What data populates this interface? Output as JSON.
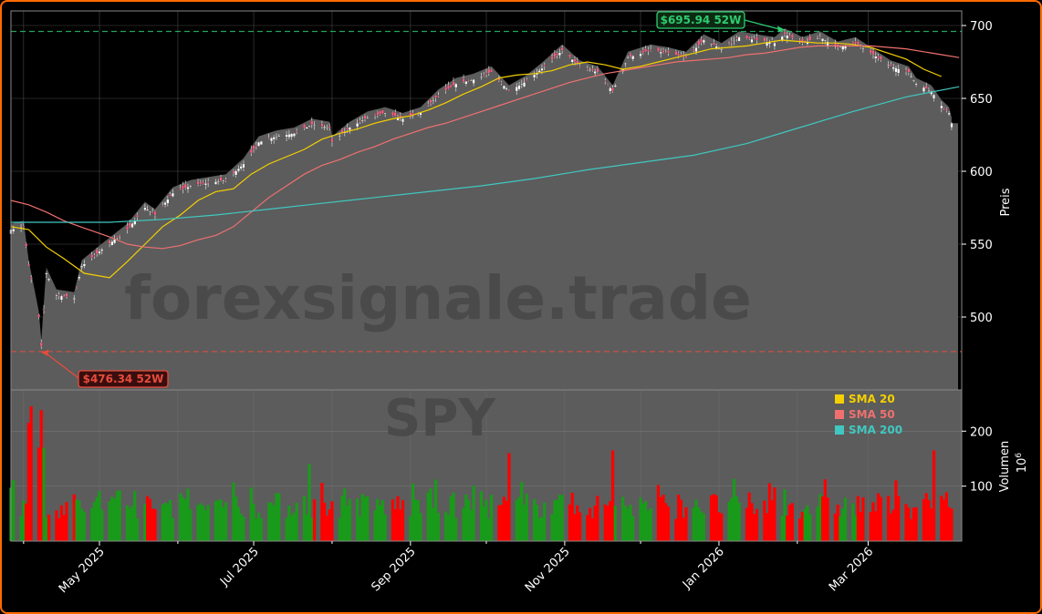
{
  "chart_data": {
    "type": "candlestick",
    "title": "",
    "symbol": "SPY",
    "watermark": "forexsignale.trade",
    "price_axis": {
      "label": "Preis",
      "ylim": [
        450,
        710
      ],
      "ticks": [
        500,
        550,
        600,
        650,
        700
      ]
    },
    "volume_axis": {
      "label": "Volumen",
      "unit_exp": "6",
      "ylim": [
        0,
        275
      ],
      "ticks": [
        100,
        200
      ]
    },
    "x_axis": {
      "range": [
        "2025-03-27",
        "2026-04-07"
      ],
      "ticks": [
        {
          "date": "2025-05-01",
          "label": "May 2025"
        },
        {
          "date": "2025-07-01",
          "label": "Jul 2025"
        },
        {
          "date": "2025-09-01",
          "label": "Sep 2025"
        },
        {
          "date": "2025-11-01",
          "label": "Nov 2025"
        },
        {
          "date": "2026-01-01",
          "label": "Jan 2026"
        },
        {
          "date": "2026-03-01",
          "label": "Mar 2026"
        }
      ],
      "minor_ticks": [
        "2025-04-01",
        "2025-06-01",
        "2025-08-01",
        "2025-10-01",
        "2025-12-01",
        "2026-02-01"
      ]
    },
    "grid": true,
    "legend": {
      "position": "top-right of volume panel",
      "entries": [
        {
          "label": "SMA 20",
          "color": "#f5d000"
        },
        {
          "label": "SMA 50",
          "color": "#f07070"
        },
        {
          "label": "SMA 200",
          "color": "#40c8c0"
        }
      ]
    },
    "annotations": [
      {
        "text": "$695.94 52W",
        "value": 695.94,
        "date": "2026-01-27",
        "color": "#2ecc71"
      },
      {
        "text": "$476.34 52W",
        "value": 476.34,
        "date": "2025-04-08",
        "color": "#e74c3c"
      }
    ],
    "last_close": 633,
    "series": [
      {
        "name": "SMA 20",
        "color": "#f5d000",
        "points": [
          [
            "2025-03-27",
            562
          ],
          [
            "2025-04-03",
            560
          ],
          [
            "2025-04-10",
            548
          ],
          [
            "2025-04-17",
            540
          ],
          [
            "2025-04-25",
            530
          ],
          [
            "2025-05-05",
            527
          ],
          [
            "2025-05-12",
            538
          ],
          [
            "2025-05-19",
            550
          ],
          [
            "2025-05-26",
            562
          ],
          [
            "2025-06-02",
            570
          ],
          [
            "2025-06-09",
            580
          ],
          [
            "2025-06-16",
            586
          ],
          [
            "2025-06-23",
            588
          ],
          [
            "2025-06-30",
            598
          ],
          [
            "2025-07-07",
            605
          ],
          [
            "2025-07-14",
            610
          ],
          [
            "2025-07-21",
            615
          ],
          [
            "2025-07-28",
            622
          ],
          [
            "2025-08-04",
            626
          ],
          [
            "2025-08-11",
            629
          ],
          [
            "2025-08-18",
            633
          ],
          [
            "2025-08-25",
            636
          ],
          [
            "2025-09-01",
            638
          ],
          [
            "2025-09-08",
            642
          ],
          [
            "2025-09-15",
            647
          ],
          [
            "2025-09-22",
            653
          ],
          [
            "2025-09-29",
            658
          ],
          [
            "2025-10-06",
            664
          ],
          [
            "2025-10-13",
            666
          ],
          [
            "2025-10-20",
            667
          ],
          [
            "2025-10-27",
            669
          ],
          [
            "2025-11-03",
            673
          ],
          [
            "2025-11-10",
            675
          ],
          [
            "2025-11-17",
            673
          ],
          [
            "2025-11-24",
            670
          ],
          [
            "2025-12-01",
            672
          ],
          [
            "2025-12-08",
            675
          ],
          [
            "2025-12-15",
            678
          ],
          [
            "2025-12-22",
            681
          ],
          [
            "2025-12-29",
            684
          ],
          [
            "2026-01-05",
            685
          ],
          [
            "2026-01-12",
            686
          ],
          [
            "2026-01-19",
            688
          ],
          [
            "2026-01-26",
            690
          ],
          [
            "2026-02-02",
            689
          ],
          [
            "2026-02-09",
            688
          ],
          [
            "2026-02-16",
            688
          ],
          [
            "2026-02-23",
            687
          ],
          [
            "2026-03-02",
            685
          ],
          [
            "2026-03-09",
            681
          ],
          [
            "2026-03-16",
            677
          ],
          [
            "2026-03-23",
            670
          ],
          [
            "2026-03-30",
            665
          ]
        ]
      },
      {
        "name": "SMA 50",
        "color": "#f07070",
        "points": [
          [
            "2025-03-27",
            580
          ],
          [
            "2025-04-03",
            577
          ],
          [
            "2025-04-10",
            572
          ],
          [
            "2025-04-17",
            566
          ],
          [
            "2025-04-25",
            561
          ],
          [
            "2025-05-05",
            555
          ],
          [
            "2025-05-12",
            550
          ],
          [
            "2025-05-19",
            548
          ],
          [
            "2025-05-26",
            547
          ],
          [
            "2025-06-02",
            549
          ],
          [
            "2025-06-09",
            553
          ],
          [
            "2025-06-16",
            556
          ],
          [
            "2025-06-23",
            562
          ],
          [
            "2025-06-30",
            572
          ],
          [
            "2025-07-07",
            582
          ],
          [
            "2025-07-14",
            590
          ],
          [
            "2025-07-21",
            598
          ],
          [
            "2025-07-28",
            604
          ],
          [
            "2025-08-04",
            608
          ],
          [
            "2025-08-11",
            613
          ],
          [
            "2025-08-18",
            617
          ],
          [
            "2025-08-25",
            622
          ],
          [
            "2025-09-01",
            626
          ],
          [
            "2025-09-08",
            630
          ],
          [
            "2025-09-15",
            633
          ],
          [
            "2025-09-22",
            637
          ],
          [
            "2025-09-29",
            641
          ],
          [
            "2025-10-06",
            645
          ],
          [
            "2025-10-13",
            649
          ],
          [
            "2025-10-20",
            653
          ],
          [
            "2025-10-27",
            657
          ],
          [
            "2025-11-03",
            661
          ],
          [
            "2025-11-10",
            664
          ],
          [
            "2025-11-17",
            667
          ],
          [
            "2025-11-24",
            669
          ],
          [
            "2025-12-01",
            671
          ],
          [
            "2025-12-08",
            673
          ],
          [
            "2025-12-15",
            675
          ],
          [
            "2025-12-22",
            676
          ],
          [
            "2025-12-29",
            677
          ],
          [
            "2026-01-05",
            678
          ],
          [
            "2026-01-12",
            680
          ],
          [
            "2026-01-19",
            681
          ],
          [
            "2026-01-26",
            683
          ],
          [
            "2026-02-02",
            685
          ],
          [
            "2026-02-09",
            686
          ],
          [
            "2026-02-16",
            686
          ],
          [
            "2026-02-23",
            686
          ],
          [
            "2026-03-02",
            686
          ],
          [
            "2026-03-09",
            685
          ],
          [
            "2026-03-16",
            684
          ],
          [
            "2026-03-23",
            682
          ],
          [
            "2026-03-30",
            680
          ],
          [
            "2026-04-06",
            678
          ]
        ]
      },
      {
        "name": "SMA 200",
        "color": "#40c8c0",
        "points": [
          [
            "2025-03-27",
            565
          ],
          [
            "2025-04-15",
            565
          ],
          [
            "2025-05-05",
            565
          ],
          [
            "2025-05-26",
            567
          ],
          [
            "2025-06-16",
            570
          ],
          [
            "2025-07-07",
            574
          ],
          [
            "2025-07-28",
            578
          ],
          [
            "2025-08-18",
            582
          ],
          [
            "2025-09-08",
            586
          ],
          [
            "2025-09-29",
            590
          ],
          [
            "2025-10-20",
            595
          ],
          [
            "2025-11-10",
            601
          ],
          [
            "2025-12-01",
            606
          ],
          [
            "2025-12-22",
            611
          ],
          [
            "2026-01-12",
            619
          ],
          [
            "2026-02-02",
            630
          ],
          [
            "2026-02-23",
            641
          ],
          [
            "2026-03-16",
            651
          ],
          [
            "2026-04-06",
            658
          ]
        ]
      }
    ],
    "price_path": [
      [
        "2025-03-27",
        560
      ],
      [
        "2025-04-01",
        562
      ],
      [
        "2025-04-03",
        535
      ],
      [
        "2025-04-07",
        500
      ],
      [
        "2025-04-08",
        480
      ],
      [
        "2025-04-10",
        530
      ],
      [
        "2025-04-14",
        515
      ],
      [
        "2025-04-21",
        513
      ],
      [
        "2025-04-24",
        535
      ],
      [
        "2025-05-01",
        545
      ],
      [
        "2025-05-12",
        560
      ],
      [
        "2025-05-19",
        575
      ],
      [
        "2025-05-23",
        570
      ],
      [
        "2025-05-30",
        585
      ],
      [
        "2025-06-06",
        590
      ],
      [
        "2025-06-13",
        592
      ],
      [
        "2025-06-20",
        594
      ],
      [
        "2025-06-27",
        605
      ],
      [
        "2025-07-03",
        620
      ],
      [
        "2025-07-10",
        624
      ],
      [
        "2025-07-17",
        626
      ],
      [
        "2025-07-24",
        632
      ],
      [
        "2025-07-31",
        630
      ],
      [
        "2025-08-01",
        620
      ],
      [
        "2025-08-08",
        630
      ],
      [
        "2025-08-15",
        637
      ],
      [
        "2025-08-22",
        640
      ],
      [
        "2025-08-29",
        636
      ],
      [
        "2025-09-05",
        640
      ],
      [
        "2025-09-12",
        652
      ],
      [
        "2025-09-19",
        660
      ],
      [
        "2025-09-26",
        663
      ],
      [
        "2025-10-03",
        668
      ],
      [
        "2025-10-10",
        655
      ],
      [
        "2025-10-17",
        662
      ],
      [
        "2025-10-24",
        672
      ],
      [
        "2025-10-31",
        683
      ],
      [
        "2025-11-07",
        672
      ],
      [
        "2025-11-14",
        668
      ],
      [
        "2025-11-20",
        655
      ],
      [
        "2025-11-26",
        678
      ],
      [
        "2025-12-05",
        683
      ],
      [
        "2025-12-12",
        681
      ],
      [
        "2025-12-19",
        678
      ],
      [
        "2025-12-26",
        690
      ],
      [
        "2026-01-02",
        684
      ],
      [
        "2026-01-09",
        692
      ],
      [
        "2026-01-16",
        690
      ],
      [
        "2026-01-23",
        688
      ],
      [
        "2026-01-27",
        694
      ],
      [
        "2026-02-03",
        688
      ],
      [
        "2026-02-10",
        692
      ],
      [
        "2026-02-17",
        685
      ],
      [
        "2026-02-24",
        688
      ],
      [
        "2026-03-03",
        680
      ],
      [
        "2026-03-10",
        672
      ],
      [
        "2026-03-17",
        668
      ],
      [
        "2026-03-20",
        660
      ],
      [
        "2026-03-26",
        655
      ],
      [
        "2026-03-30",
        645
      ],
      [
        "2026-04-02",
        640
      ],
      [
        "2026-04-03",
        633
      ]
    ],
    "volume_highlights": [
      [
        "2025-04-03",
        215
      ],
      [
        "2025-04-04",
        245
      ],
      [
        "2025-04-07",
        170
      ],
      [
        "2025-04-08",
        238
      ],
      [
        "2025-04-09",
        170
      ],
      [
        "2025-07-23",
        140
      ],
      [
        "2025-10-10",
        160
      ],
      [
        "2025-11-20",
        165
      ],
      [
        "2026-03-27",
        165
      ]
    ],
    "volume_base_range": [
      40,
      110
    ]
  }
}
